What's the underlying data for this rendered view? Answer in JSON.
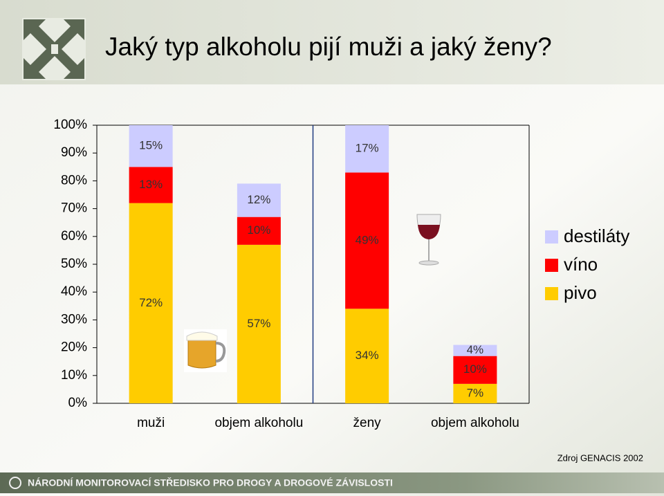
{
  "chart_data": {
    "type": "stacked_bar",
    "title": "Jaký typ alkoholu pijí muži a jaký ženy?",
    "categories": [
      "muži",
      "objem alkoholu",
      "ženy",
      "objem alkoholu"
    ],
    "series": [
      {
        "name": "pivo",
        "color": "#FFCC00",
        "values": [
          72,
          57,
          34,
          7
        ],
        "value_labels": [
          "72%",
          "57%",
          "34%",
          "7%"
        ]
      },
      {
        "name": "víno",
        "color": "#FF0000",
        "values": [
          13,
          10,
          49,
          10
        ],
        "value_labels": [
          "13%",
          "10%",
          "49%",
          "10%"
        ]
      },
      {
        "name": "destiláty",
        "color": "#CCCCFF",
        "values": [
          15,
          12,
          17,
          4
        ],
        "value_labels": [
          "15%",
          "12%",
          "17%",
          "4%"
        ]
      }
    ],
    "ylim": [
      0,
      100
    ],
    "yticks": [
      {
        "value": 0,
        "label": "0%"
      },
      {
        "value": 10,
        "label": "10%"
      },
      {
        "value": 20,
        "label": "20%"
      },
      {
        "value": 30,
        "label": "30%"
      },
      {
        "value": 40,
        "label": "40%"
      },
      {
        "value": 50,
        "label": "50%"
      },
      {
        "value": 60,
        "label": "60%"
      },
      {
        "value": 70,
        "label": "70%"
      },
      {
        "value": 80,
        "label": "80%"
      },
      {
        "value": 90,
        "label": "90%"
      },
      {
        "value": 100,
        "label": "100%"
      }
    ],
    "source": "Zdroj GENACIS 2002",
    "footer": "NÁRODNÍ MONITOROVACÍ STŘEDISKO PRO DROGY A DROGOVÉ ZÁVISLOSTI"
  }
}
